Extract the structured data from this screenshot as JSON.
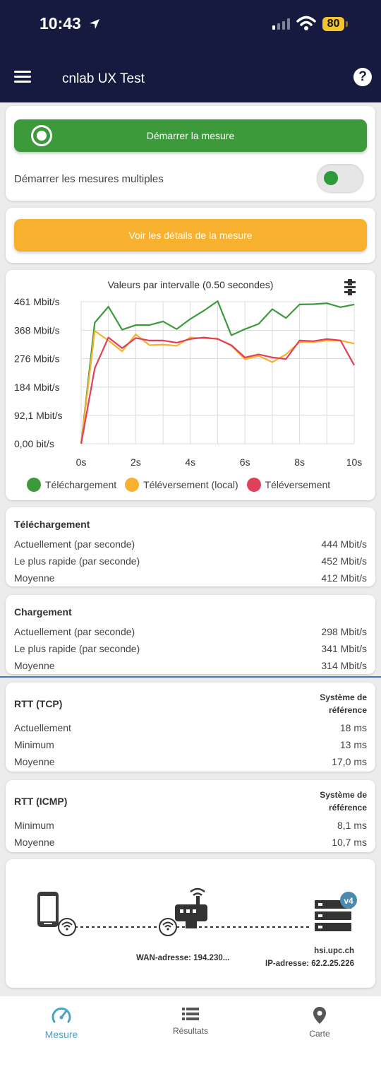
{
  "status_bar": {
    "time": "10:43",
    "battery": "80"
  },
  "header": {
    "title": "cnlab UX Test"
  },
  "start": {
    "button_label": "Démarrer la mesure",
    "multi_label": "Démarrer les mesures multiples"
  },
  "details_button": "Voir les détails de la mesure",
  "chart": {
    "title": "Valeurs par intervalle (0.50 secondes)",
    "y_ticks": [
      "461 Mbit/s",
      "368 Mbit/s",
      "276 Mbit/s",
      "184 Mbit/s",
      "92,1 Mbit/s",
      "0,00 bit/s"
    ],
    "x_ticks": [
      "0s",
      "2s",
      "4s",
      "6s",
      "8s",
      "10s"
    ],
    "legend": [
      "Téléchargement",
      "Téléversement (local)",
      "Téléversement"
    ]
  },
  "chart_data": {
    "type": "line",
    "title": "Valeurs par intervalle (0.50 secondes)",
    "xlabel": "",
    "ylabel": "",
    "xlim": [
      0,
      10
    ],
    "ylim": [
      0,
      461
    ],
    "y_ticks": [
      461,
      368,
      276,
      184,
      92.1,
      0
    ],
    "x_ticks": [
      0,
      2,
      4,
      6,
      8,
      10
    ],
    "x": [
      0,
      0.5,
      1,
      1.5,
      2,
      2.5,
      3,
      3.5,
      4,
      4.5,
      5,
      5.5,
      6,
      6.5,
      7,
      7.5,
      8,
      8.5,
      9,
      9.5,
      10
    ],
    "series": [
      {
        "name": "Téléchargement",
        "color": "#3c9a3b",
        "values": [
          0,
          393,
          445,
          370,
          385,
          385,
          397,
          372,
          405,
          432,
          463,
          352,
          372,
          389,
          437,
          408,
          452,
          453,
          456,
          443,
          452
        ]
      },
      {
        "name": "Téléversement (local)",
        "color": "#f7b12f",
        "values": [
          0,
          366,
          335,
          300,
          355,
          320,
          322,
          318,
          345,
          342,
          341,
          318,
          274,
          285,
          265,
          290,
          330,
          330,
          335,
          335,
          325
        ]
      },
      {
        "name": "Téléversement",
        "color": "#e0405a",
        "values": [
          0,
          245,
          345,
          310,
          343,
          335,
          335,
          328,
          340,
          345,
          340,
          320,
          280,
          290,
          280,
          275,
          335,
          333,
          340,
          335,
          255
        ]
      }
    ],
    "grid": true,
    "legend_position": "bottom"
  },
  "download": {
    "title": "Téléchargement",
    "rows": [
      {
        "label": "Actuellement (par seconde)",
        "value": "444 Mbit/s"
      },
      {
        "label": "Le plus rapide (par seconde)",
        "value": "452 Mbit/s"
      },
      {
        "label": "Moyenne",
        "value": "412 Mbit/s"
      }
    ]
  },
  "upload": {
    "title": "Chargement",
    "rows": [
      {
        "label": "Actuellement (par seconde)",
        "value": "298 Mbit/s"
      },
      {
        "label": "Le plus rapide (par seconde)",
        "value": "341 Mbit/s"
      },
      {
        "label": "Moyenne",
        "value": "314 Mbit/s"
      }
    ]
  },
  "rtt_tcp": {
    "title": "RTT (TCP)",
    "ref_line1": "Système de",
    "ref_line2": "référence",
    "rows": [
      {
        "label": "Actuellement",
        "value": "18 ms"
      },
      {
        "label": "Minimum",
        "value": "13 ms"
      },
      {
        "label": "Moyenne",
        "value": "17,0 ms"
      }
    ]
  },
  "rtt_icmp": {
    "title": "RTT (ICMP)",
    "ref_line1": "Système de",
    "ref_line2": "référence",
    "rows": [
      {
        "label": "Minimum",
        "value": "8,1 ms"
      },
      {
        "label": "Moyenne",
        "value": "10,7 ms"
      }
    ]
  },
  "network": {
    "wan": "WAN-adresse: 194.230...",
    "server": "hsi.upc.ch",
    "ip": "IP-adresse: 62.2.25.226",
    "badge": "v4"
  },
  "nav": {
    "measure": "Mesure",
    "results": "Résultats",
    "map": "Carte"
  },
  "colors": {
    "header": "#161a3e",
    "green": "#3c9a3b",
    "orange": "#f7b12f",
    "red": "#e0405a",
    "accent": "#4aa3c9"
  }
}
